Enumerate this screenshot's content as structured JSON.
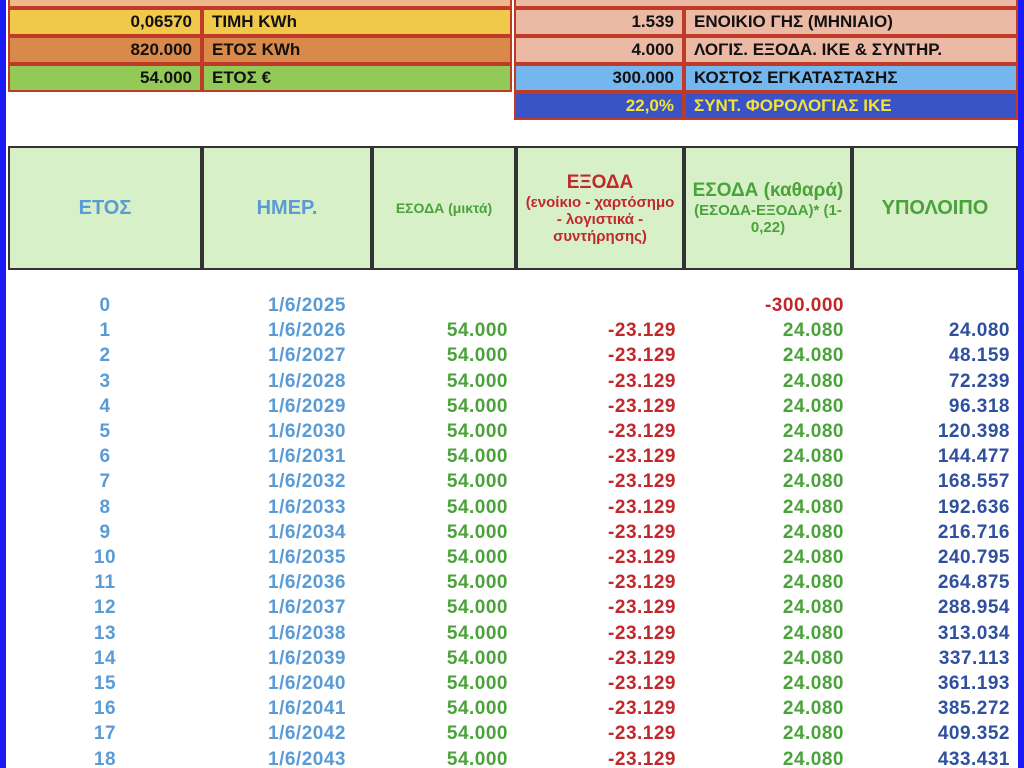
{
  "parameters": {
    "left": [
      {
        "value": "0,06570",
        "label": "ΤΙΜΗ KWh"
      },
      {
        "value": "820.000",
        "label": "ΕΤΟΣ  KWh"
      },
      {
        "value": "54.000",
        "label": "ΕΤΟΣ €"
      }
    ],
    "right": [
      {
        "value": "1.539",
        "label": "ΕΝΟΙΚΙΟ ΓΗΣ (ΜΗΝΙΑΙΟ)"
      },
      {
        "value": "4.000",
        "label": "ΛΟΓΙΣ. ΕΞΟΔΑ. ΙΚΕ & ΣΥΝΤΗΡ."
      },
      {
        "value": "300.000",
        "label": "ΚΟΣΤΟΣ ΕΓΚΑΤΑΣΤΑΣΗΣ"
      },
      {
        "value": "22,0%",
        "label": "ΣΥΝΤ. ΦΟΡΟΛΟΓΙΑΣ ΙΚΕ"
      }
    ]
  },
  "table": {
    "header": [
      {
        "title": "ΕΤΟΣ"
      },
      {
        "title": "ΗΜΕΡ."
      },
      {
        "title": "ΕΣΟΔΑ (μικτά)"
      },
      {
        "title": "ΕΞΟΔΑ",
        "note": "(ενοίκιο - χαρτόσημο - λογιστικά - συντήρησης)"
      },
      {
        "title": "ΕΣΟΔΑ (καθαρά)",
        "note": "(ΕΣΟΔΑ-ΕΞΟΔΑ)* (1-0,22)"
      },
      {
        "title": "ΥΠΟΛΟΙΠΟ"
      }
    ],
    "rows": [
      [
        "0",
        "1/6/2025",
        null,
        null,
        "-300.000",
        null
      ],
      [
        "1",
        "1/6/2026",
        "54.000",
        "-23.129",
        "24.080",
        "24.080"
      ],
      [
        "2",
        "1/6/2027",
        "54.000",
        "-23.129",
        "24.080",
        "48.159"
      ],
      [
        "3",
        "1/6/2028",
        "54.000",
        "-23.129",
        "24.080",
        "72.239"
      ],
      [
        "4",
        "1/6/2029",
        "54.000",
        "-23.129",
        "24.080",
        "96.318"
      ],
      [
        "5",
        "1/6/2030",
        "54.000",
        "-23.129",
        "24.080",
        "120.398"
      ],
      [
        "6",
        "1/6/2031",
        "54.000",
        "-23.129",
        "24.080",
        "144.477"
      ],
      [
        "7",
        "1/6/2032",
        "54.000",
        "-23.129",
        "24.080",
        "168.557"
      ],
      [
        "8",
        "1/6/2033",
        "54.000",
        "-23.129",
        "24.080",
        "192.636"
      ],
      [
        "9",
        "1/6/2034",
        "54.000",
        "-23.129",
        "24.080",
        "216.716"
      ],
      [
        "10",
        "1/6/2035",
        "54.000",
        "-23.129",
        "24.080",
        "240.795"
      ],
      [
        "11",
        "1/6/2036",
        "54.000",
        "-23.129",
        "24.080",
        "264.875"
      ],
      [
        "12",
        "1/6/2037",
        "54.000",
        "-23.129",
        "24.080",
        "288.954"
      ],
      [
        "13",
        "1/6/2038",
        "54.000",
        "-23.129",
        "24.080",
        "313.034"
      ],
      [
        "14",
        "1/6/2039",
        "54.000",
        "-23.129",
        "24.080",
        "337.113"
      ],
      [
        "15",
        "1/6/2040",
        "54.000",
        "-23.129",
        "24.080",
        "361.193"
      ],
      [
        "16",
        "1/6/2041",
        "54.000",
        "-23.129",
        "24.080",
        "385.272"
      ],
      [
        "17",
        "1/6/2042",
        "54.000",
        "-23.129",
        "24.080",
        "409.352"
      ],
      [
        "18",
        "1/6/2043",
        "54.000",
        "-23.129",
        "24.080",
        "433.431"
      ]
    ]
  }
}
